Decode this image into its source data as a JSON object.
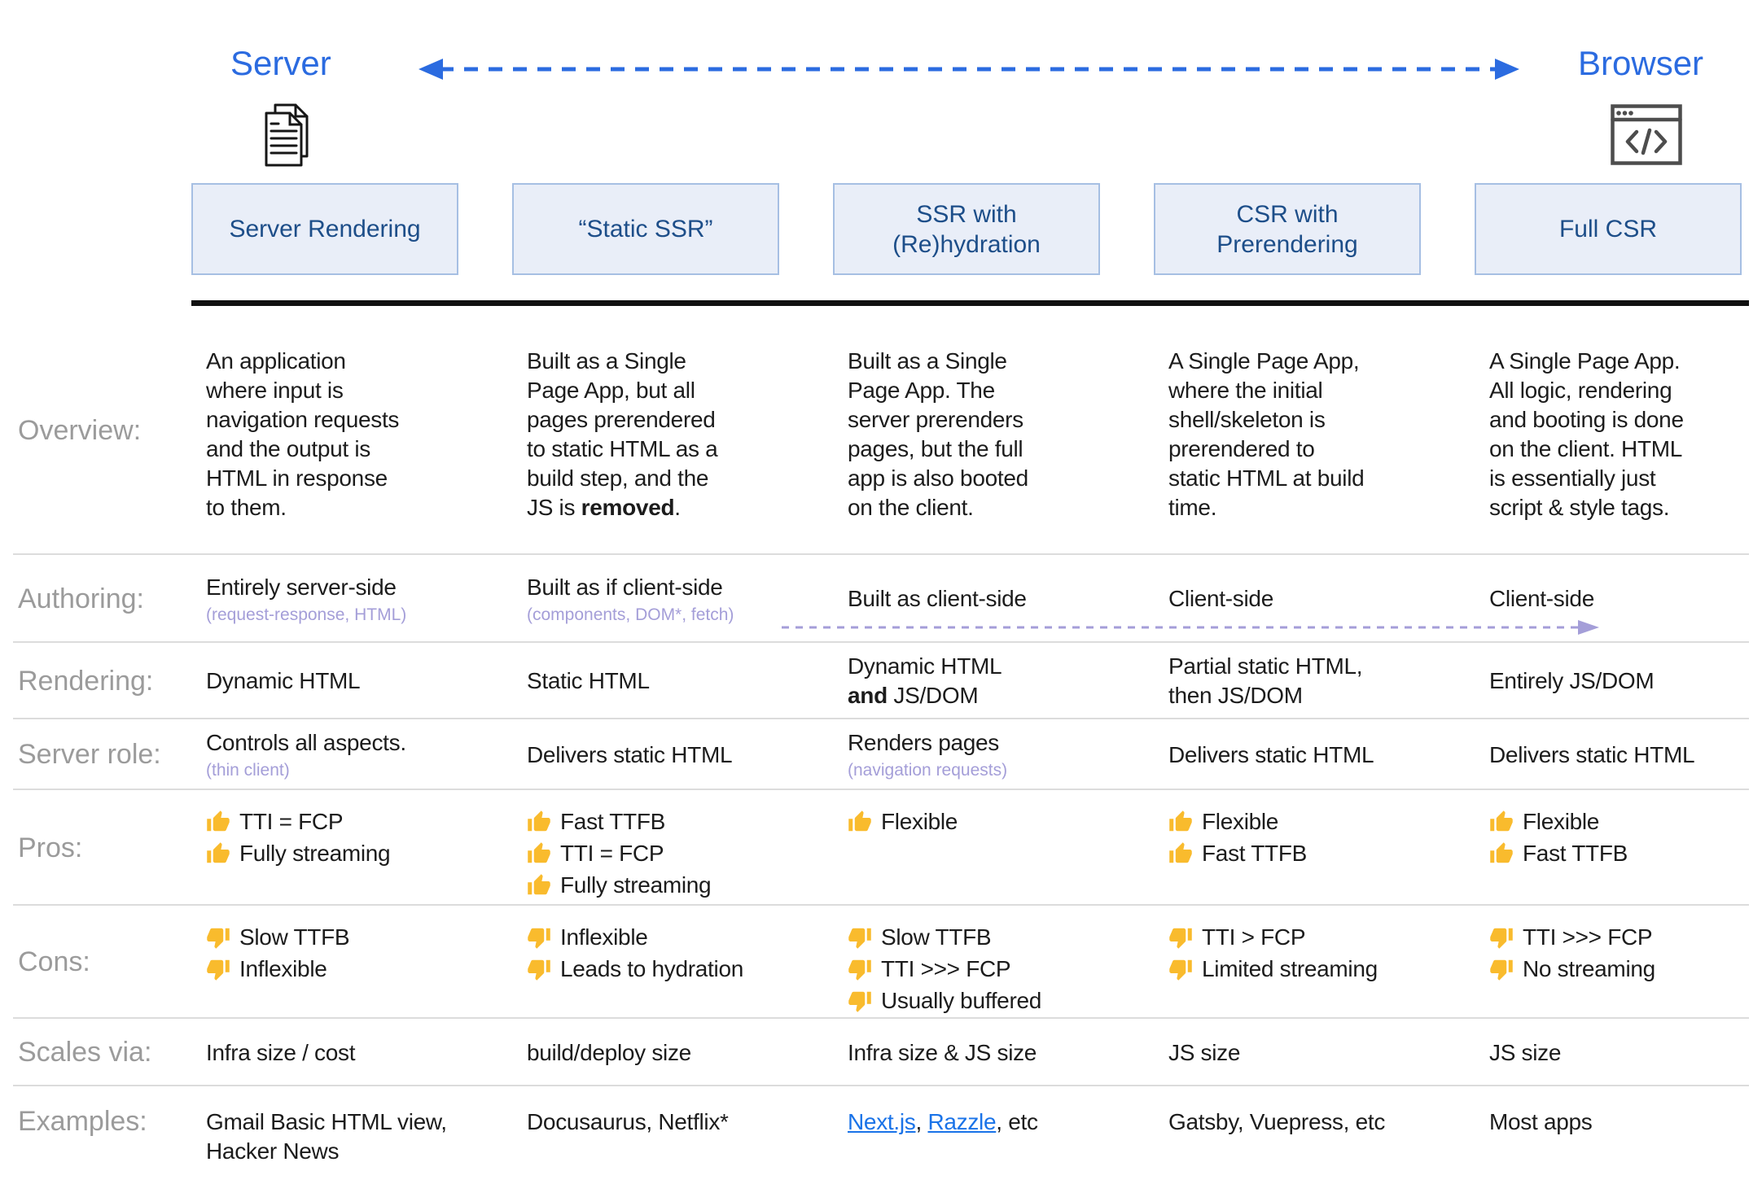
{
  "top": {
    "server_label": "Server",
    "browser_label": "Browser"
  },
  "icons": [
    "documents-icon",
    "browser-window-icon",
    "thumb-up-icon",
    "thumb-down-icon",
    "server-browser-dashed-arrow",
    "client-side-dashed-arrow"
  ],
  "colors": {
    "accent_blue": "#2b6be0",
    "header_text": "#1d4e89",
    "header_bg": "#e9eef8",
    "header_border": "#a6bfe3",
    "lavender": "#a49ed8",
    "link_blue": "#1a73e8",
    "thumb_gold": "#f9bb2d",
    "label_gray": "#9b9b9b"
  },
  "columns": [
    {
      "label": "Server Rendering"
    },
    {
      "label": "“Static SSR”"
    },
    {
      "label": "SSR with\n(Re)hydration"
    },
    {
      "label": "CSR with\nPrerendering"
    },
    {
      "label": "Full CSR"
    }
  ],
  "table": {
    "rows": [
      {
        "label": "Overview:",
        "cells": [
          {
            "segments": [
              {
                "t": "An application\nwhere input is\nnavigation requests\nand the output is\nHTML in response\nto them."
              }
            ]
          },
          {
            "segments": [
              {
                "t": "Built as a Single\nPage App, but all\npages prerendered\nto static HTML as a\nbuild step, and the\nJS is "
              },
              {
                "t": "removed",
                "b": true
              },
              {
                "t": "."
              }
            ]
          },
          {
            "segments": [
              {
                "t": "Built as a Single\nPage App. The\nserver prerenders\npages, but the full\napp is also booted\non the client."
              }
            ]
          },
          {
            "segments": [
              {
                "t": "A Single Page App,\nwhere the initial\nshell/skeleton is\nprerendered to\nstatic HTML at build\ntime."
              }
            ]
          },
          {
            "segments": [
              {
                "t": "A Single Page App.\nAll logic, rendering\nand booting is done\non the client. HTML\nis essentially just\nscript & style tags."
              }
            ]
          }
        ]
      },
      {
        "label": "Authoring:",
        "cells": [
          {
            "segments": [
              {
                "t": "Entirely server-side"
              }
            ],
            "sub": "(request-response, HTML)"
          },
          {
            "segments": [
              {
                "t": "Built as if client-side"
              }
            ],
            "sub": "(components, DOM*, fetch)"
          },
          {
            "segments": [
              {
                "t": "Built as client-side"
              }
            ]
          },
          {
            "segments": [
              {
                "t": "Client-side"
              }
            ]
          },
          {
            "segments": [
              {
                "t": "Client-side"
              }
            ]
          }
        ]
      },
      {
        "label": "Rendering:",
        "cells": [
          {
            "segments": [
              {
                "t": "Dynamic HTML"
              }
            ]
          },
          {
            "segments": [
              {
                "t": "Static HTML"
              }
            ]
          },
          {
            "segments": [
              {
                "t": "Dynamic HTML\n"
              },
              {
                "t": "and",
                "b": true
              },
              {
                "t": " JS/DOM"
              }
            ]
          },
          {
            "segments": [
              {
                "t": "Partial static HTML,\nthen JS/DOM"
              }
            ]
          },
          {
            "segments": [
              {
                "t": "Entirely JS/DOM"
              }
            ]
          }
        ]
      },
      {
        "label": "Server role:",
        "cells": [
          {
            "segments": [
              {
                "t": "Controls all aspects."
              }
            ],
            "sub": "(thin client)"
          },
          {
            "segments": [
              {
                "t": "Delivers static HTML"
              }
            ]
          },
          {
            "segments": [
              {
                "t": "Renders pages"
              }
            ],
            "sub": "(navigation requests)"
          },
          {
            "segments": [
              {
                "t": "Delivers static HTML"
              }
            ]
          },
          {
            "segments": [
              {
                "t": "Delivers static HTML"
              }
            ]
          }
        ]
      },
      {
        "label": "Pros:",
        "icon": "thumb-up",
        "cells": [
          {
            "items": [
              "TTI = FCP",
              "Fully streaming"
            ]
          },
          {
            "items": [
              "Fast TTFB",
              "TTI = FCP",
              "Fully streaming"
            ]
          },
          {
            "items": [
              "Flexible"
            ]
          },
          {
            "items": [
              "Flexible",
              "Fast TTFB"
            ]
          },
          {
            "items": [
              "Flexible",
              "Fast TTFB"
            ]
          }
        ]
      },
      {
        "label": "Cons:",
        "icon": "thumb-down",
        "cells": [
          {
            "items": [
              "Slow TTFB",
              "Inflexible"
            ]
          },
          {
            "items": [
              "Inflexible",
              "Leads to hydration"
            ]
          },
          {
            "items": [
              "Slow TTFB",
              "TTI >>> FCP",
              "Usually buffered"
            ]
          },
          {
            "items": [
              "TTI > FCP",
              "Limited streaming"
            ]
          },
          {
            "items": [
              "TTI >>> FCP",
              "No streaming"
            ]
          }
        ]
      },
      {
        "label": "Scales via:",
        "cells": [
          {
            "segments": [
              {
                "t": "Infra size / cost"
              }
            ]
          },
          {
            "segments": [
              {
                "t": "build/deploy size"
              }
            ]
          },
          {
            "segments": [
              {
                "t": "Infra size & JS size"
              }
            ]
          },
          {
            "segments": [
              {
                "t": "JS size"
              }
            ]
          },
          {
            "segments": [
              {
                "t": "JS size"
              }
            ]
          }
        ]
      },
      {
        "label": "Examples:",
        "cells": [
          {
            "segments": [
              {
                "t": "Gmail Basic HTML view,\nHacker News"
              }
            ]
          },
          {
            "segments": [
              {
                "t": "Docusaurus, Netflix*"
              }
            ]
          },
          {
            "segments": [
              {
                "t": "Next.js",
                "link": true
              },
              {
                "t": ", "
              },
              {
                "t": "Razzle",
                "link": true
              },
              {
                "t": ", etc"
              }
            ]
          },
          {
            "segments": [
              {
                "t": "Gatsby, Vuepress, etc"
              }
            ]
          },
          {
            "segments": [
              {
                "t": "Most apps"
              }
            ]
          }
        ]
      }
    ]
  }
}
